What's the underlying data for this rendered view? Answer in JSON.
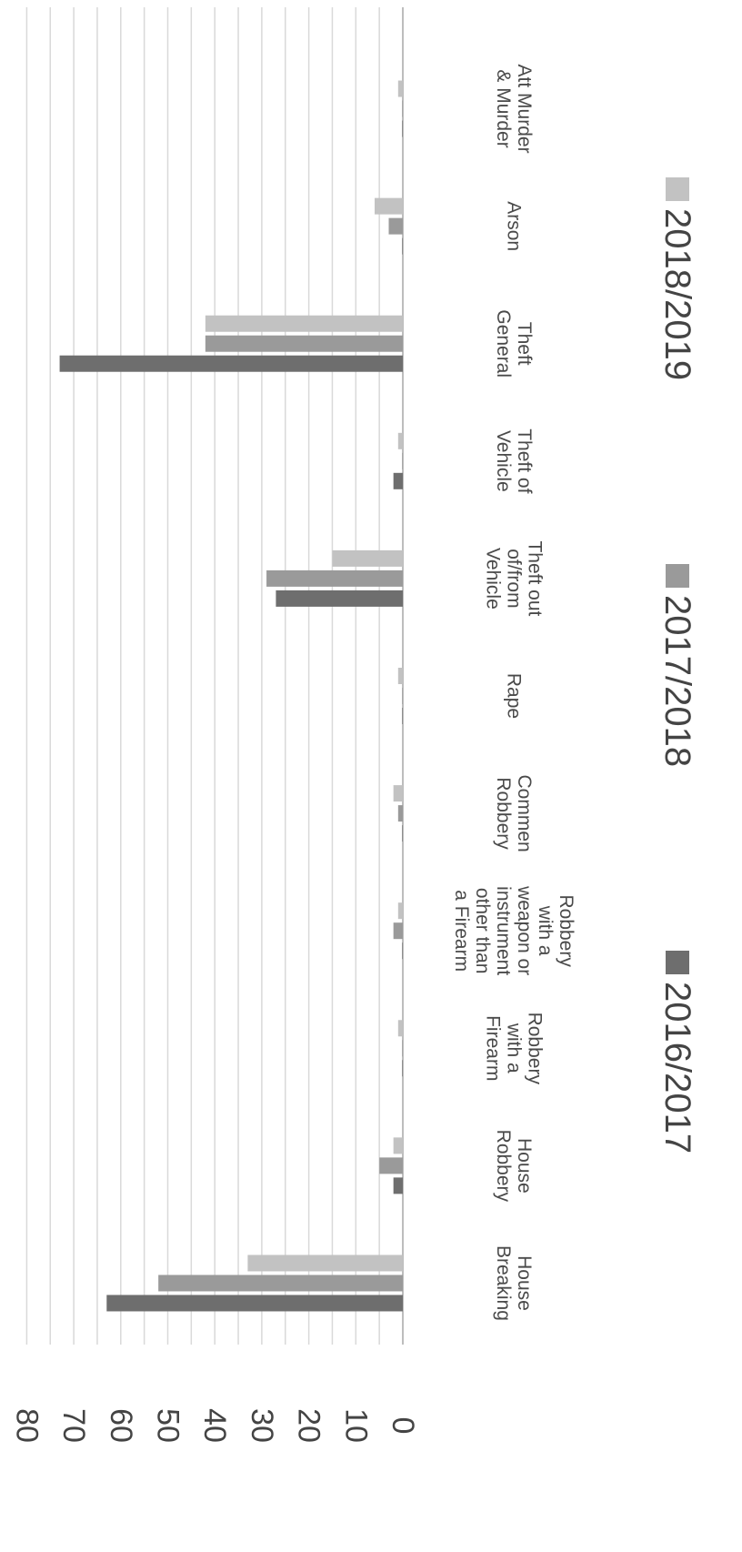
{
  "chart_data": {
    "type": "bar",
    "orientation": "rotated-90-clockwise",
    "categories": [
      [
        "House",
        "Breaking"
      ],
      [
        "House",
        "Robbery"
      ],
      [
        "Robbery",
        "with a",
        "Firearm"
      ],
      [
        "Robbery",
        "with a",
        "weapon or",
        "instrument",
        "other than",
        "a Firearm"
      ],
      [
        "Commen",
        "Robbery"
      ],
      [
        "Rape"
      ],
      [
        "Theft out",
        "of/from",
        "Vehicle"
      ],
      [
        "Theft of",
        "Vehicle"
      ],
      [
        "Theft",
        "General"
      ],
      [
        "Arson"
      ],
      [
        "Att Murder",
        "& Murder"
      ]
    ],
    "series": [
      {
        "name": "2016/2017",
        "color": "#6e6e6e",
        "values": [
          63,
          2,
          0,
          0,
          0,
          0,
          27,
          2,
          73,
          0,
          0
        ]
      },
      {
        "name": "2017/2018",
        "color": "#9a9a9a",
        "values": [
          52,
          5,
          0,
          2,
          1,
          0,
          29,
          0,
          42,
          3,
          0
        ]
      },
      {
        "name": "2018/2019",
        "color": "#c2c2c2",
        "values": [
          33,
          2,
          1,
          1,
          2,
          1,
          15,
          1,
          42,
          6,
          1
        ]
      }
    ],
    "y_ticks": [
      "0",
      "10",
      "20",
      "30",
      "40",
      "50",
      "60",
      "70",
      "80"
    ],
    "ylim": [
      0,
      80
    ],
    "grid": true,
    "legend_position": "bottom"
  }
}
